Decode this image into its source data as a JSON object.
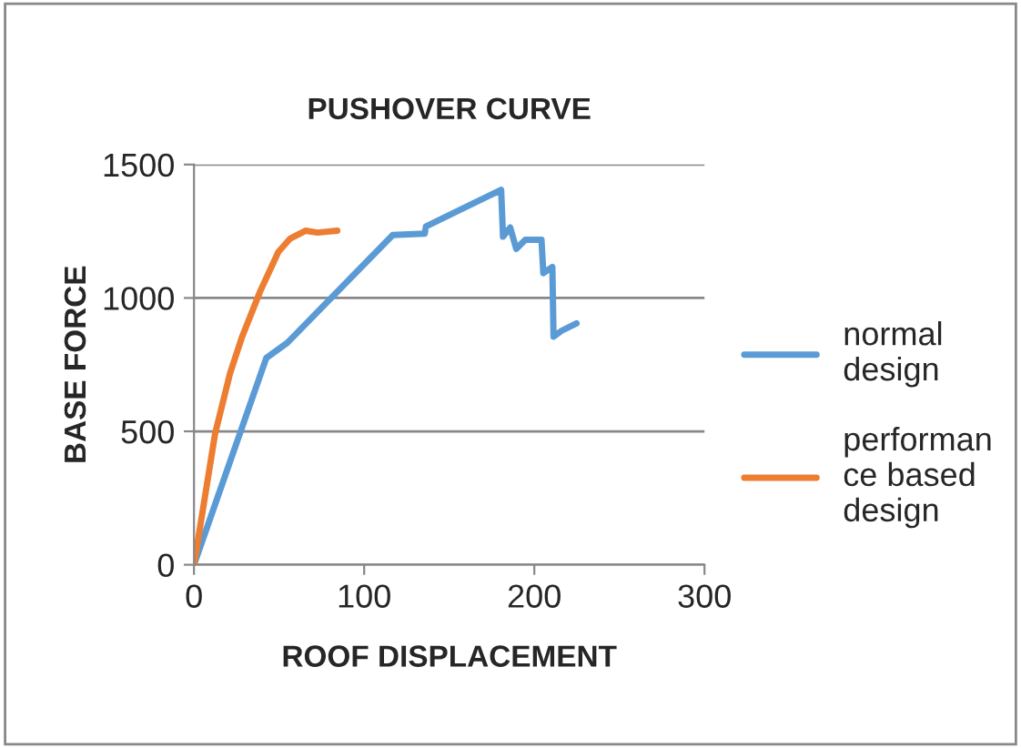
{
  "chart_data": {
    "type": "line",
    "title": "PUSHOVER CURVE",
    "xlabel": "ROOF DISPLACEMENT",
    "ylabel": "BASE FORCE",
    "xlim": [
      0,
      300
    ],
    "xticks": [
      0,
      100,
      200,
      300
    ],
    "ylim": [
      0,
      1500
    ],
    "yticks": [
      0,
      500,
      1000,
      1500
    ],
    "grid": "y",
    "legend": "right",
    "marker": "none",
    "line_style": "solid",
    "series": [
      {
        "name": "normal design",
        "color": "#5b9bd5",
        "x": [
          0,
          42.5,
          54.9,
          116.8,
          135.6,
          136.3,
          180.5,
          181.6,
          185.8,
          189.4,
          194.7,
          204.2,
          205.3,
          210.6,
          211.3,
          216,
          224.8
        ],
        "values": [
          0,
          775,
          832,
          1236,
          1241,
          1268,
          1405,
          1230,
          1264,
          1184,
          1218,
          1218,
          1093,
          1116,
          855,
          877,
          905
        ]
      },
      {
        "name": "performance based design",
        "color": "#ed7d31",
        "x": [
          0,
          12.4,
          21.2,
          28.3,
          38.9,
          49.6,
          56.6,
          65.5,
          72.6,
          84.2
        ],
        "values": [
          0,
          491,
          718,
          855,
          1025,
          1173,
          1223,
          1252,
          1245,
          1252
        ]
      }
    ]
  }
}
